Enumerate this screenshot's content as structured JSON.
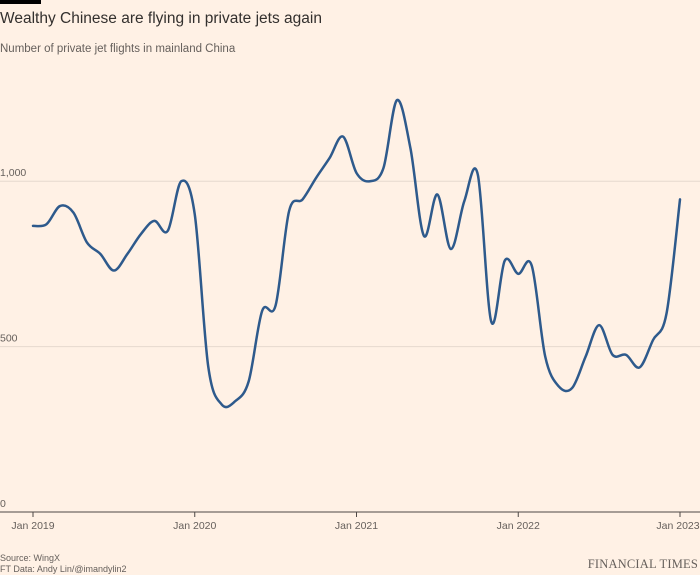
{
  "header": {
    "title": "Wealthy Chinese are flying in private jets again",
    "subtitle": "Number of private jet flights in mainland China"
  },
  "footer": {
    "source": "Source: WingX",
    "credit": "FT Data: Andy Lin/@imandylin2",
    "brand": "FINANCIAL TIMES"
  },
  "colors": {
    "background": "#fff1e5",
    "line": "#2e5a8c",
    "gridline": "#e6d9ce",
    "text": "#33302e",
    "muted_text": "#66605c"
  },
  "chart_data": {
    "type": "line",
    "title": "Wealthy Chinese are flying in private jets again",
    "subtitle": "Number of private jet flights in mainland China",
    "xlabel": "",
    "ylabel": "",
    "xlim": [
      "2019-01",
      "2023-01"
    ],
    "ylim": [
      0,
      1300
    ],
    "x_ticks": [
      "Jan 2019",
      "Jan 2020",
      "Jan 2021",
      "Jan 2022",
      "Jan 2023"
    ],
    "y_ticks": [
      {
        "value": 0,
        "label": "0"
      },
      {
        "value": 500,
        "label": "500"
      },
      {
        "value": 1000,
        "label": "1,000"
      }
    ],
    "grid": true,
    "legend": "none",
    "series": [
      {
        "x": [
          "2019-01",
          "2019-02",
          "2019-03",
          "2019-04",
          "2019-05",
          "2019-06",
          "2019-07",
          "2019-08",
          "2019-09",
          "2019-10",
          "2019-11",
          "2019-12",
          "2020-01",
          "2020-02",
          "2020-03",
          "2020-04",
          "2020-05",
          "2020-06",
          "2020-07",
          "2020-08",
          "2020-09",
          "2020-10",
          "2020-11",
          "2020-12",
          "2021-01",
          "2021-02",
          "2021-03",
          "2021-04",
          "2021-05",
          "2021-06",
          "2021-07",
          "2021-08",
          "2021-09",
          "2021-10",
          "2021-11",
          "2021-12",
          "2022-01",
          "2022-02",
          "2022-03",
          "2022-04",
          "2022-05",
          "2022-06",
          "2022-07",
          "2022-08",
          "2022-09",
          "2022-10",
          "2022-11",
          "2022-12",
          "2023-01"
        ],
        "values": [
          865,
          870,
          925,
          905,
          815,
          780,
          730,
          780,
          840,
          880,
          850,
          1000,
          900,
          440,
          325,
          335,
          395,
          608,
          625,
          910,
          945,
          1010,
          1070,
          1135,
          1025,
          1000,
          1040,
          1245,
          1100,
          835,
          960,
          795,
          940,
          1020,
          575,
          760,
          720,
          745,
          470,
          380,
          375,
          470,
          565,
          475,
          475,
          437,
          520,
          600,
          945
        ]
      }
    ]
  }
}
